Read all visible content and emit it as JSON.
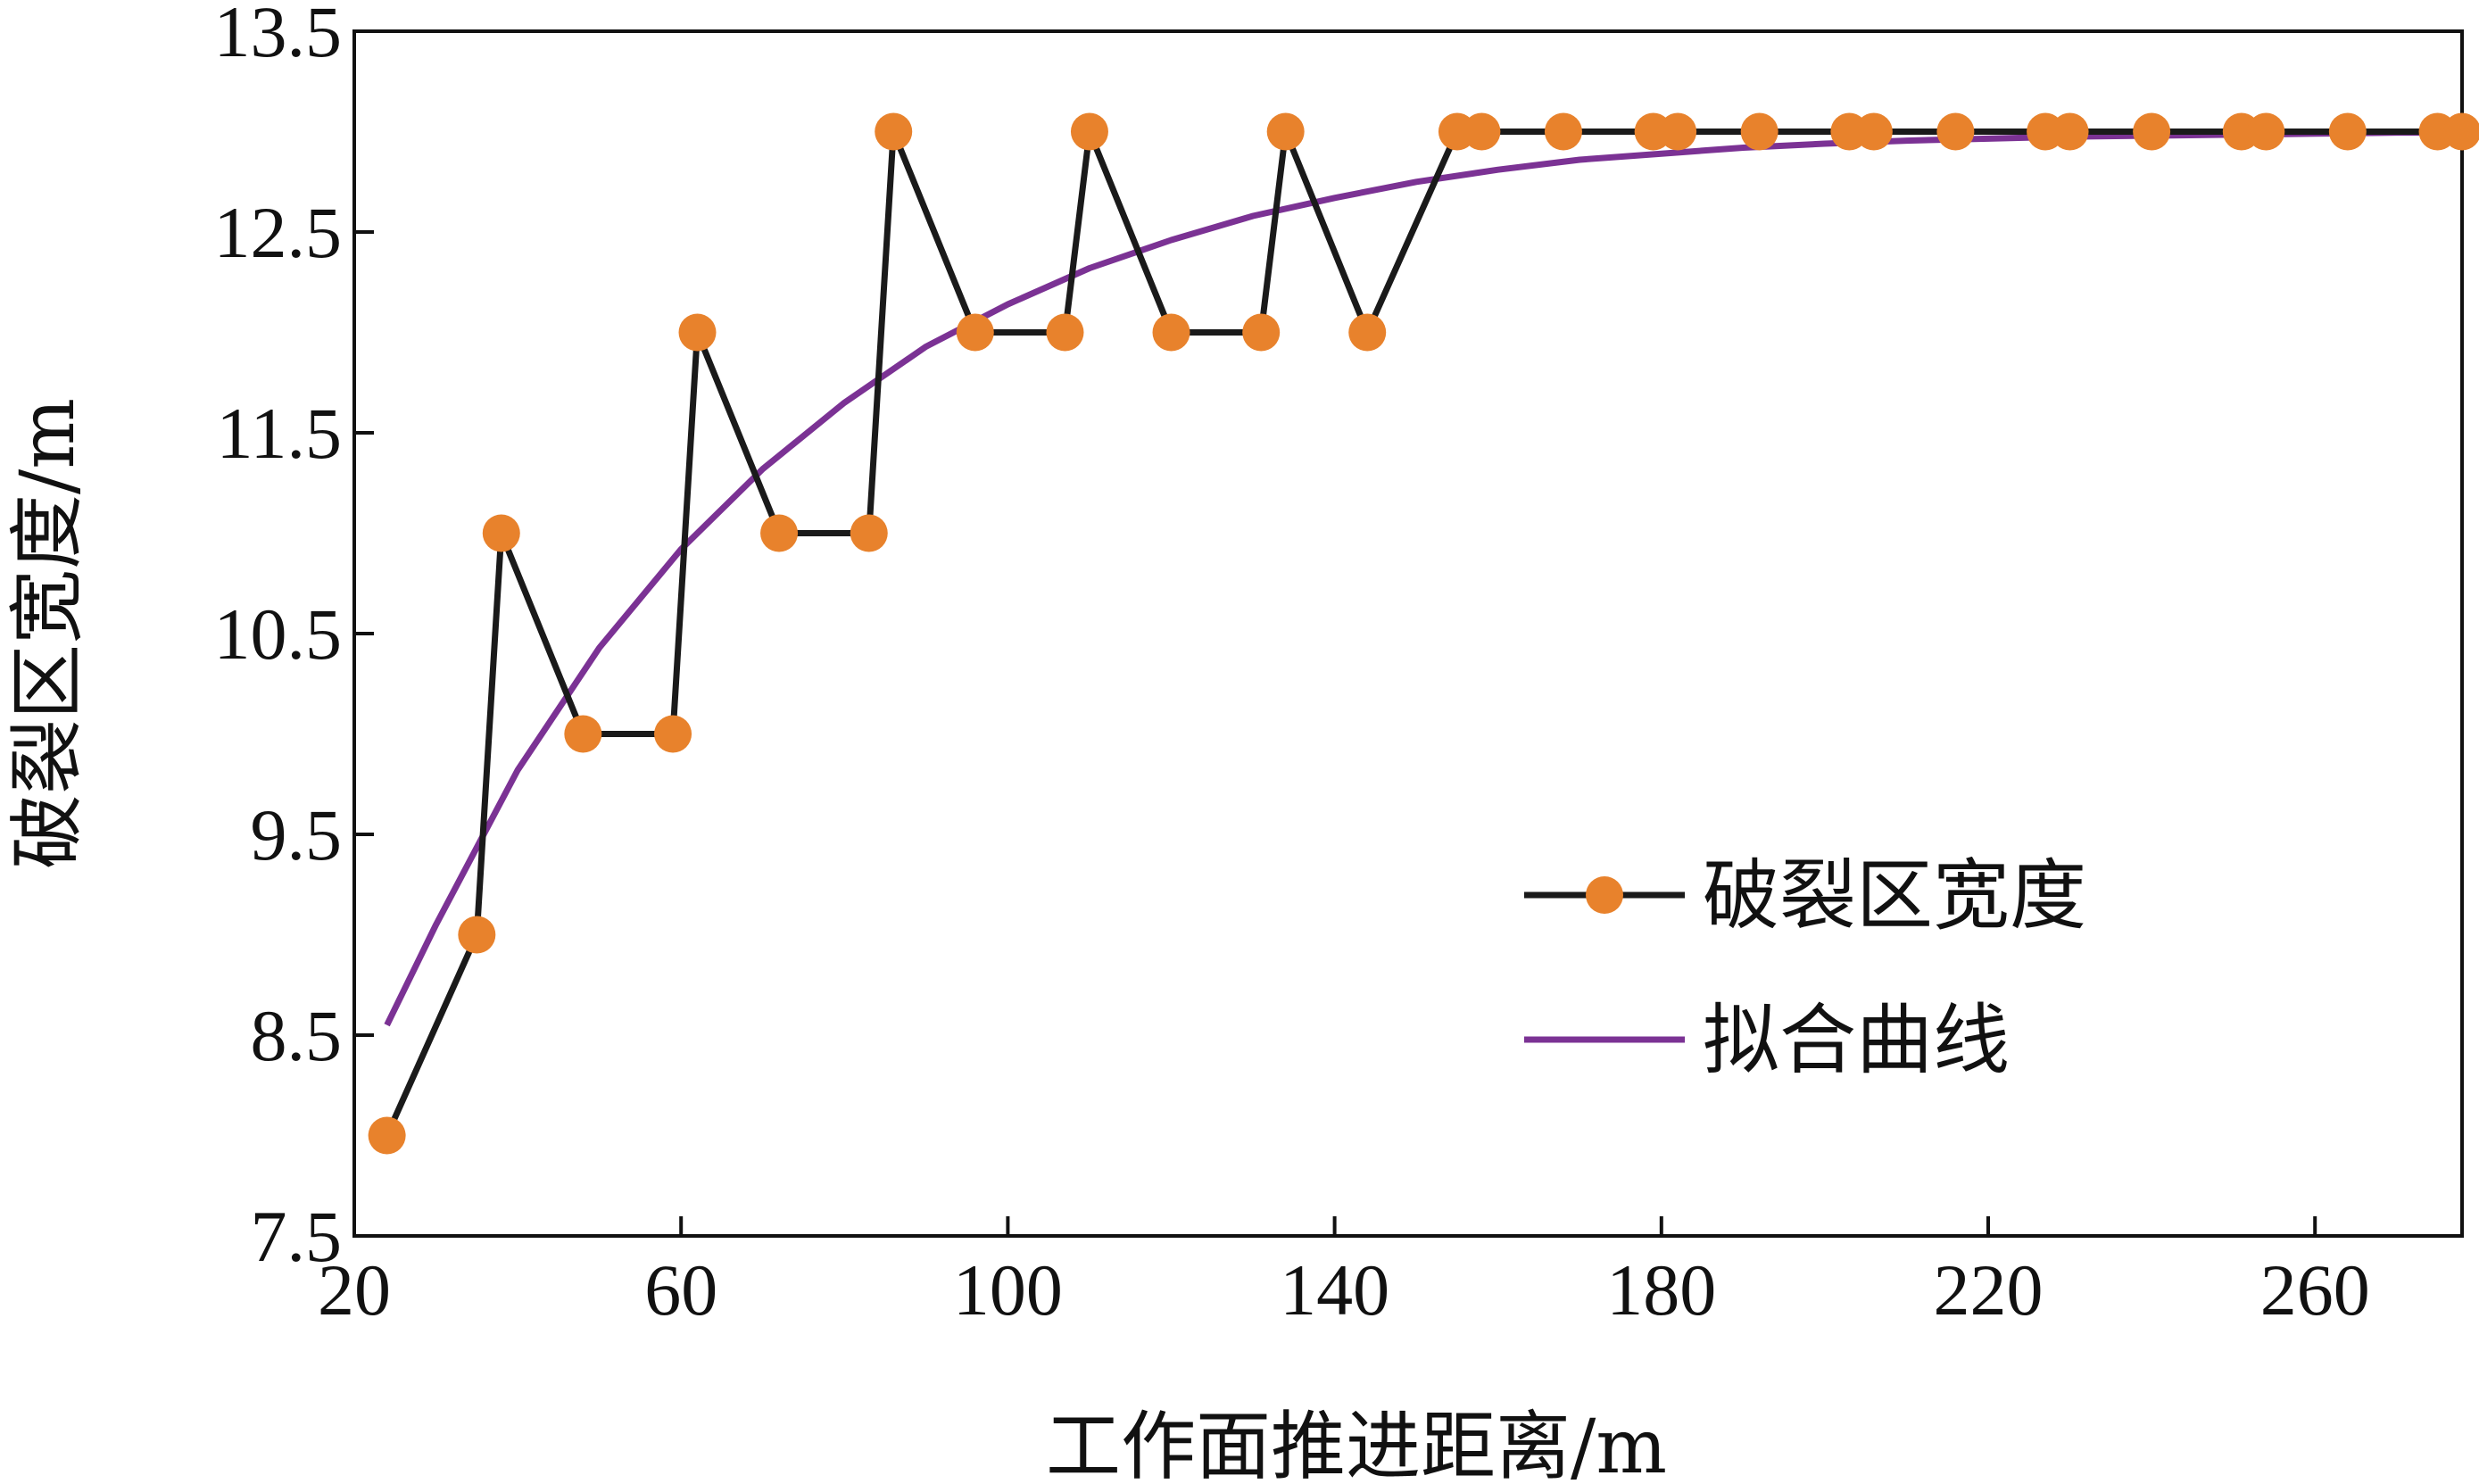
{
  "chart_data": {
    "type": "line",
    "xlabel": "工作面推进距离/m",
    "ylabel": "破裂区宽度/m",
    "xlim": [
      20,
      278
    ],
    "ylim": [
      7.5,
      13.5
    ],
    "x_ticks": [
      20,
      60,
      100,
      140,
      180,
      220,
      260
    ],
    "y_ticks": [
      7.5,
      8.5,
      9.5,
      10.5,
      11.5,
      12.5,
      13.5
    ],
    "x_tick_labels": [
      "20",
      "60",
      "100",
      "140",
      "180",
      "220",
      "260"
    ],
    "y_tick_labels": [
      "7.5",
      "8.5",
      "9.5",
      "10.5",
      "11.5",
      "12.5",
      "13.5"
    ],
    "grid": false,
    "legend_position": "right-center",
    "series": [
      {
        "name": "破裂区宽度",
        "type": "line-marker",
        "line_color": "#1a1a1a",
        "marker_color": "#E8822C",
        "x": [
          24,
          35,
          38,
          48,
          59,
          62,
          72,
          83,
          86,
          96,
          107,
          110,
          120,
          131,
          134,
          144,
          155,
          158,
          168,
          179,
          182,
          192,
          203,
          206,
          216,
          227,
          230,
          240,
          251,
          254,
          264,
          275,
          278
        ],
        "values": [
          8,
          9,
          11,
          10,
          10,
          12,
          11,
          11,
          13,
          12,
          12,
          13,
          12,
          12,
          13,
          12,
          13,
          13,
          13,
          13,
          13,
          13,
          13,
          13,
          13,
          13,
          13,
          13,
          13,
          13,
          13,
          13,
          13
        ]
      },
      {
        "name": "拟合曲线",
        "type": "line",
        "line_color": "#7B3294",
        "x": [
          24,
          30,
          40,
          50,
          60,
          70,
          80,
          90,
          100,
          110,
          120,
          130,
          140,
          150,
          160,
          170,
          180,
          190,
          200,
          210,
          220,
          230,
          240,
          250,
          260,
          270,
          278
        ],
        "values": [
          8.55,
          9.05,
          9.82,
          10.43,
          10.92,
          11.32,
          11.65,
          11.93,
          12.14,
          12.32,
          12.46,
          12.58,
          12.67,
          12.75,
          12.81,
          12.86,
          12.89,
          12.92,
          12.94,
          12.955,
          12.965,
          12.975,
          12.98,
          12.985,
          12.99,
          12.995,
          12.995
        ]
      }
    ]
  }
}
